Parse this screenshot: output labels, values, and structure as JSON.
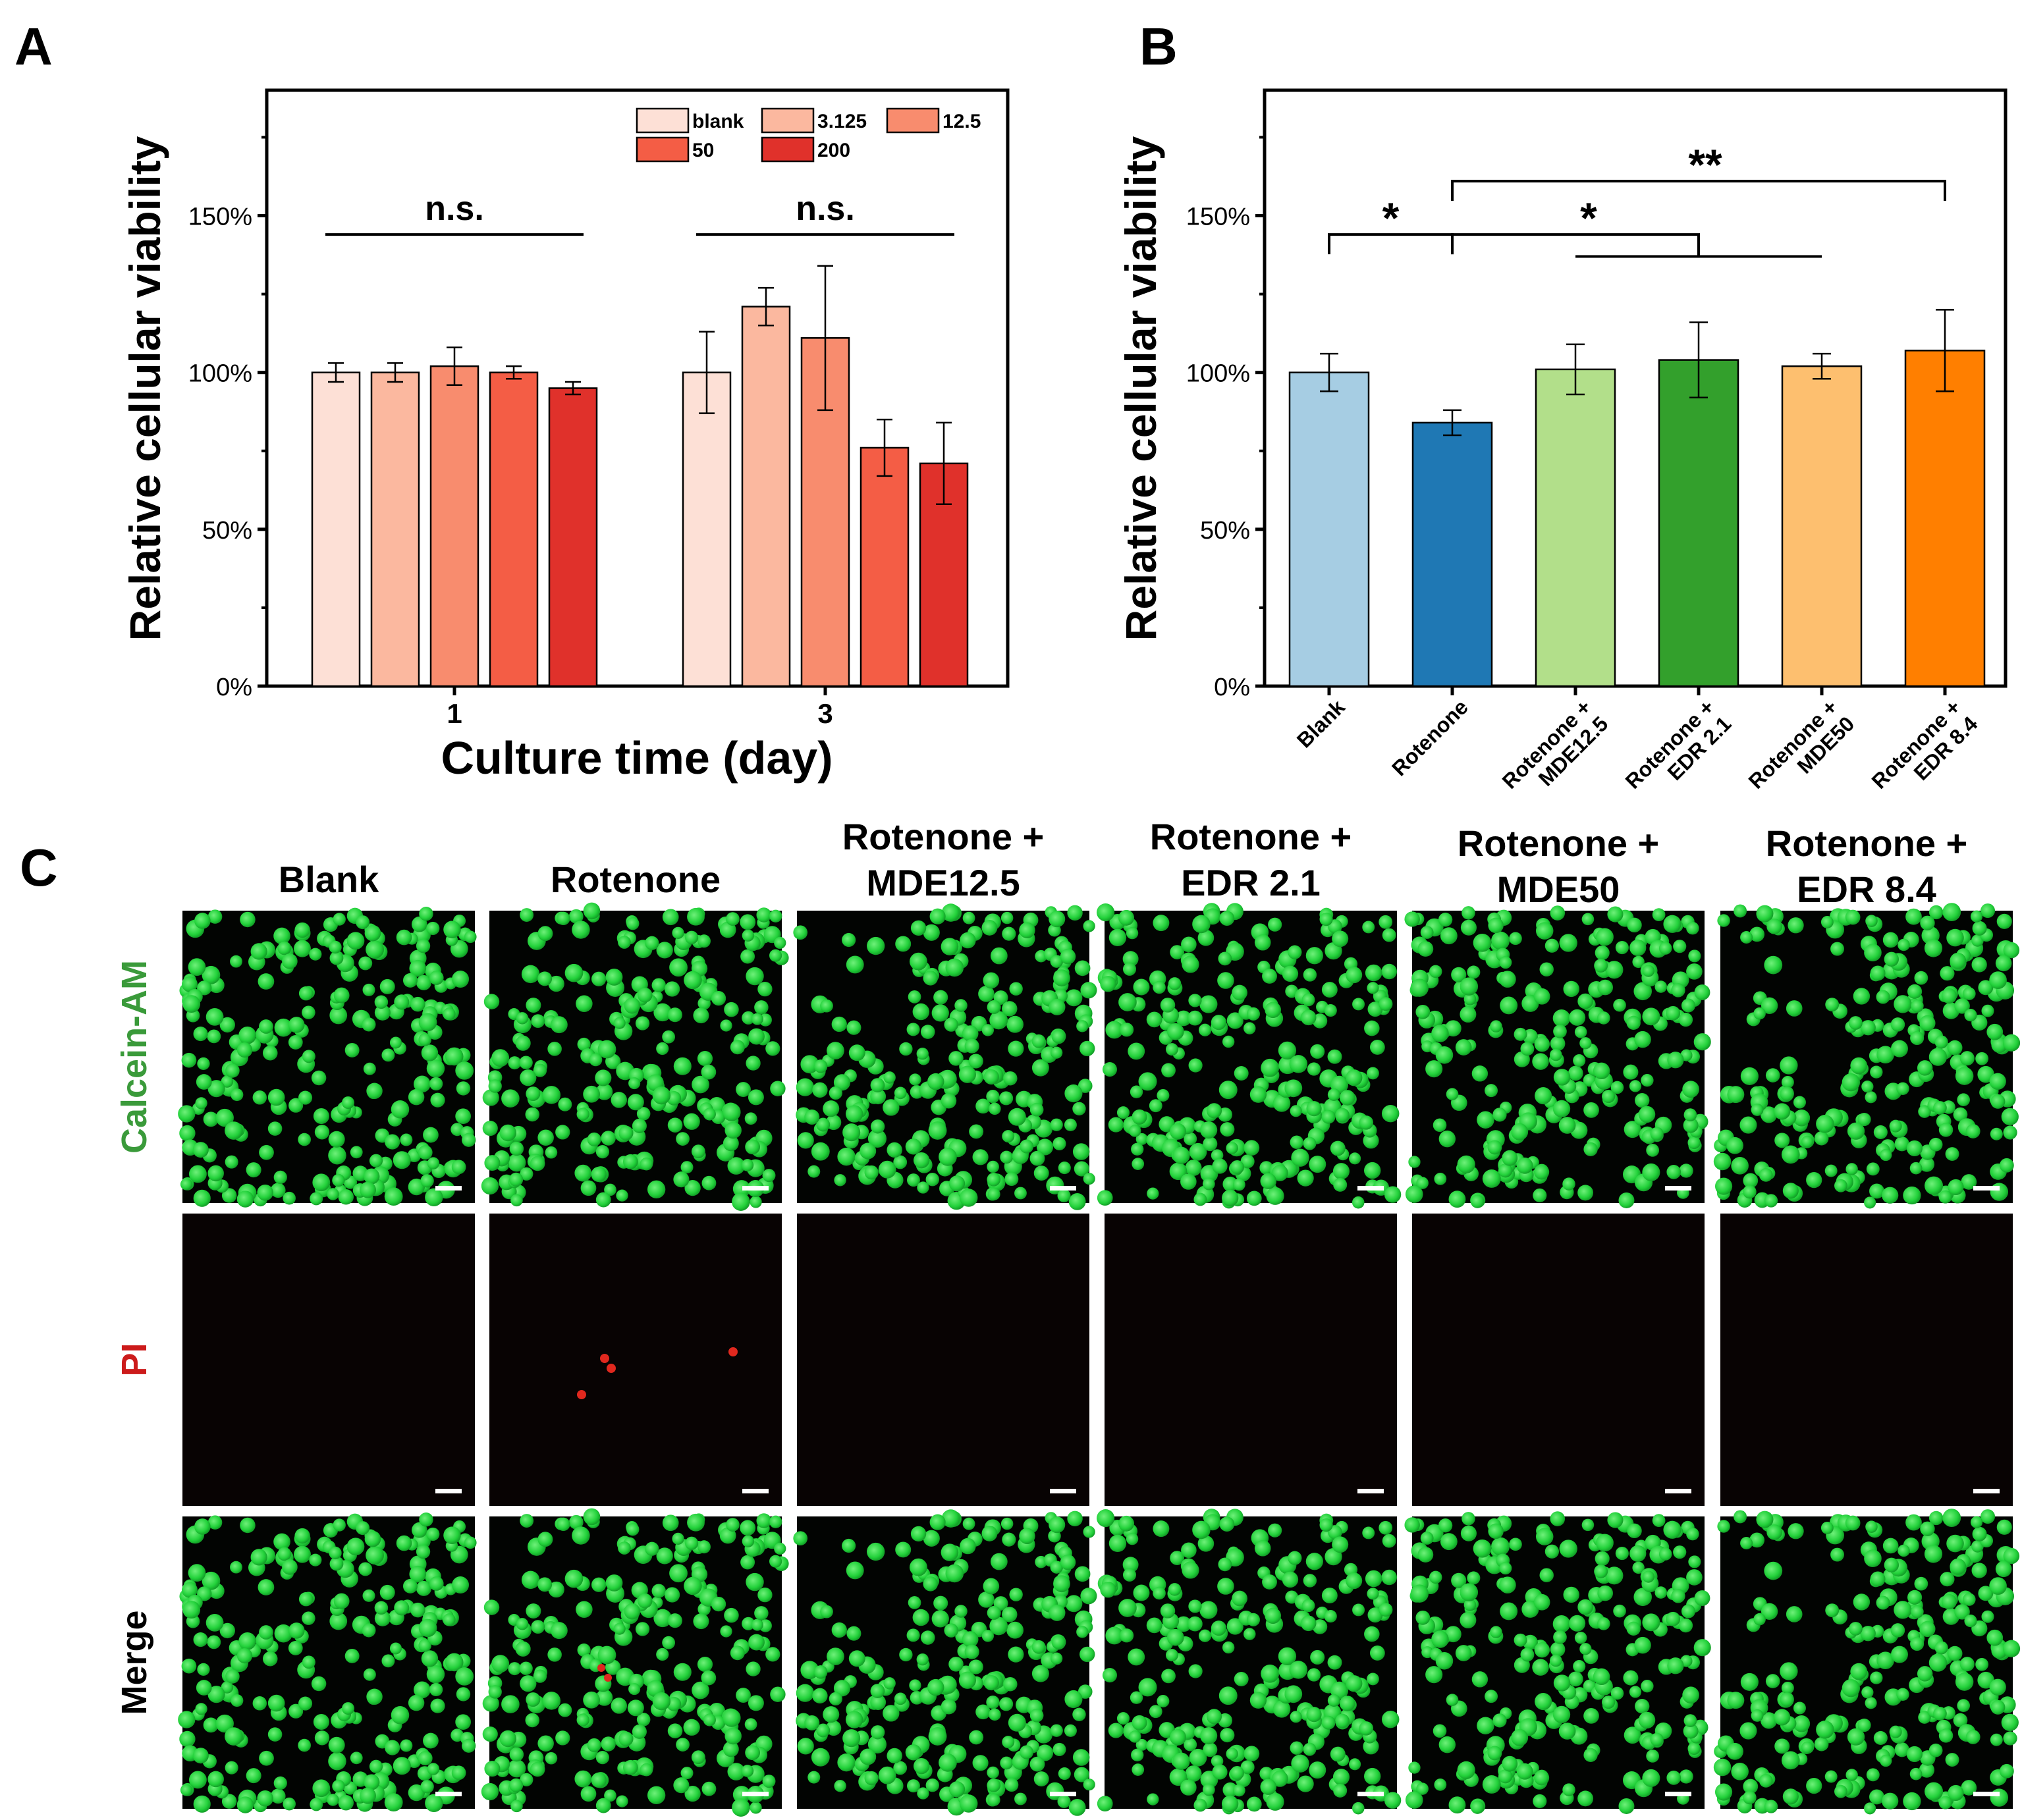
{
  "panels": {
    "a": "A",
    "b": "B",
    "c": "C"
  },
  "chart_data": [
    {
      "type": "bar",
      "panel": "A",
      "ylabel": "Relative cellular viability",
      "xlabel": "Culture time (day)",
      "categories": [
        "1",
        "3"
      ],
      "yticks": [
        "0%",
        "50%",
        "100%",
        "150%"
      ],
      "ylim": [
        0,
        1.9
      ],
      "legend_position": "top-right",
      "series": [
        {
          "name": "blank",
          "color": "#fde0d6",
          "values": [
            1.0,
            1.0
          ],
          "errors": [
            0.03,
            0.13
          ]
        },
        {
          "name": "3.125",
          "color": "#fbb89f",
          "values": [
            1.0,
            1.21
          ],
          "errors": [
            0.03,
            0.06
          ]
        },
        {
          "name": "12.5",
          "color": "#f88c6e",
          "values": [
            1.02,
            1.11
          ],
          "errors": [
            0.06,
            0.23
          ]
        },
        {
          "name": "50",
          "color": "#f45d45",
          "values": [
            1.0,
            0.76
          ],
          "errors": [
            0.02,
            0.09
          ]
        },
        {
          "name": "200",
          "color": "#e0312b",
          "values": [
            0.95,
            0.71
          ],
          "errors": [
            0.02,
            0.13
          ]
        }
      ],
      "annotations": [
        {
          "group": "1",
          "label": "n.s.",
          "y": 1.44
        },
        {
          "group": "3",
          "label": "n.s.",
          "y": 1.44
        }
      ]
    },
    {
      "type": "bar",
      "panel": "B",
      "ylabel": "Relative cellular viability",
      "xlabel": "",
      "yticks": [
        "0%",
        "50%",
        "100%",
        "150%"
      ],
      "ylim": [
        0,
        1.9
      ],
      "categories": [
        [
          "Blank"
        ],
        [
          "Rotenone"
        ],
        [
          "Rotenone +",
          "MDE12.5"
        ],
        [
          "Rotenone +",
          "EDR 2.1"
        ],
        [
          "Rotenone +",
          "MDE50"
        ],
        [
          "Rotenone +",
          "EDR 8.4"
        ]
      ],
      "values": [
        1.0,
        0.84,
        1.01,
        1.04,
        1.02,
        1.07
      ],
      "errors": [
        0.06,
        0.04,
        0.08,
        0.12,
        0.04,
        0.13
      ],
      "colors": [
        "#a6cde3",
        "#1f78b4",
        "#b2df8a",
        "#33a02c",
        "#fdbf6f",
        "#ff7f00"
      ],
      "significance": [
        {
          "label": "*",
          "from": 0,
          "to": 1,
          "y": 1.44
        },
        {
          "label": "*",
          "from": 1,
          "to": 3,
          "y": 1.44,
          "lower_from": 2,
          "lower_to": 4,
          "lower_y": 1.37
        },
        {
          "label": "**",
          "from": 1,
          "to": 5,
          "y": 1.61
        }
      ]
    }
  ],
  "microscopy": {
    "columns": [
      [
        "Blank"
      ],
      [
        "Rotenone"
      ],
      [
        "Rotenone +",
        "MDE12.5"
      ],
      [
        "Rotenone +",
        "EDR 2.1"
      ],
      [
        "Rotenone +",
        "MDE50"
      ],
      [
        "Rotenone +",
        "EDR 8.4"
      ]
    ],
    "rows": [
      {
        "label": "Calcein-AM",
        "color": "#3a9a3a"
      },
      {
        "label": "PI",
        "color": "#cc1b1b"
      },
      {
        "label": "Merge",
        "color": "#000000"
      }
    ],
    "cell_color": "#22d13a",
    "dead_color": "#e0281e"
  }
}
